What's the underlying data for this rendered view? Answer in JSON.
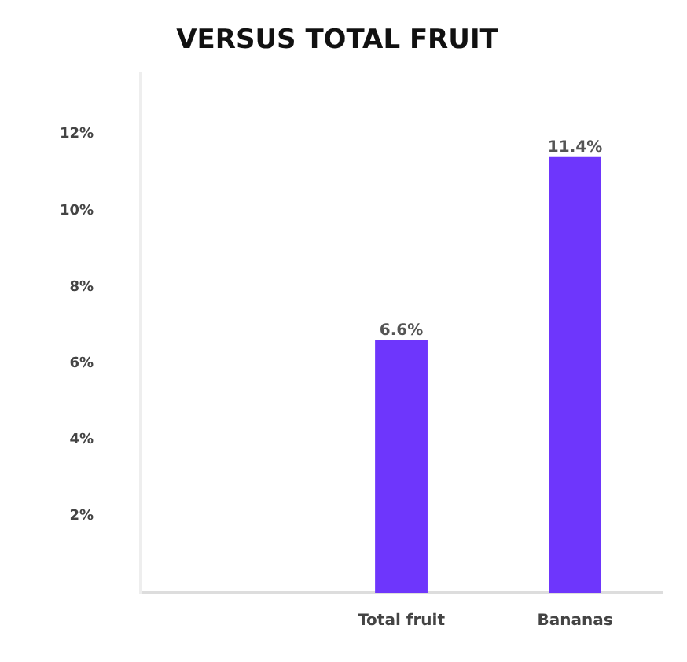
{
  "chart_data": {
    "type": "bar",
    "title": "VERSUS TOTAL FRUIT",
    "categories": [
      null,
      "Total fruit",
      "Bananas"
    ],
    "values": [
      null,
      6.6,
      11.4
    ],
    "color": "#6e36fc",
    "value_labels": [
      null,
      "6.6%",
      "11.4%"
    ],
    "ylim": [
      0,
      13.6
    ],
    "yticks": [
      {
        "value": 2,
        "label": "2%"
      },
      {
        "value": 4,
        "label": "4%"
      },
      {
        "value": 6,
        "label": "6%"
      },
      {
        "value": 8,
        "label": "8%"
      },
      {
        "value": 10,
        "label": "10%"
      },
      {
        "value": 12,
        "label": "12%"
      }
    ],
    "grid": false,
    "legend": false
  }
}
